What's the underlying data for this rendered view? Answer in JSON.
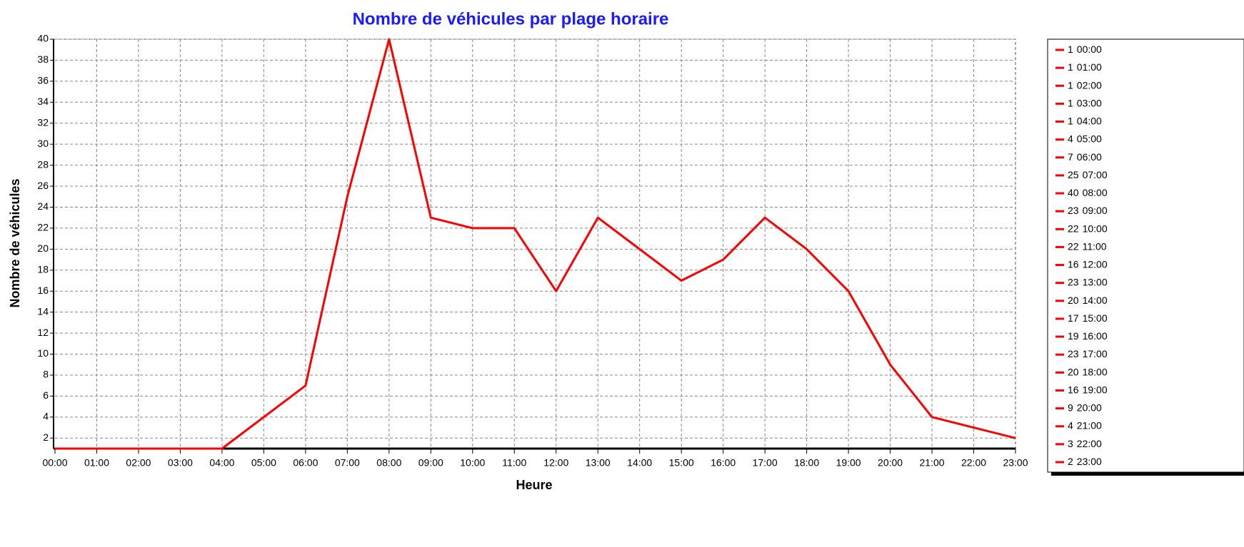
{
  "chart_data": {
    "type": "line",
    "title": "Nombre de véhicules par plage horaire",
    "x_label": "Heure",
    "y_label": "Nombre de véhicules",
    "categories": [
      "00:00",
      "01:00",
      "02:00",
      "03:00",
      "04:00",
      "05:00",
      "06:00",
      "07:00",
      "08:00",
      "09:00",
      "10:00",
      "11:00",
      "12:00",
      "13:00",
      "14:00",
      "15:00",
      "16:00",
      "17:00",
      "18:00",
      "19:00",
      "20:00",
      "21:00",
      "22:00",
      "23:00"
    ],
    "values": [
      1,
      1,
      1,
      1,
      1,
      4,
      7,
      25,
      40,
      23,
      22,
      22,
      16,
      23,
      20,
      17,
      19,
      23,
      20,
      16,
      9,
      4,
      3,
      2
    ],
    "color": "#ff0000",
    "ylim": [
      1,
      40
    ],
    "yticks": [
      2,
      4,
      6,
      8,
      10,
      12,
      14,
      16,
      18,
      20,
      22,
      24,
      26,
      28,
      30,
      32,
      34,
      36,
      38,
      40
    ],
    "grid": true,
    "legend": "right"
  }
}
